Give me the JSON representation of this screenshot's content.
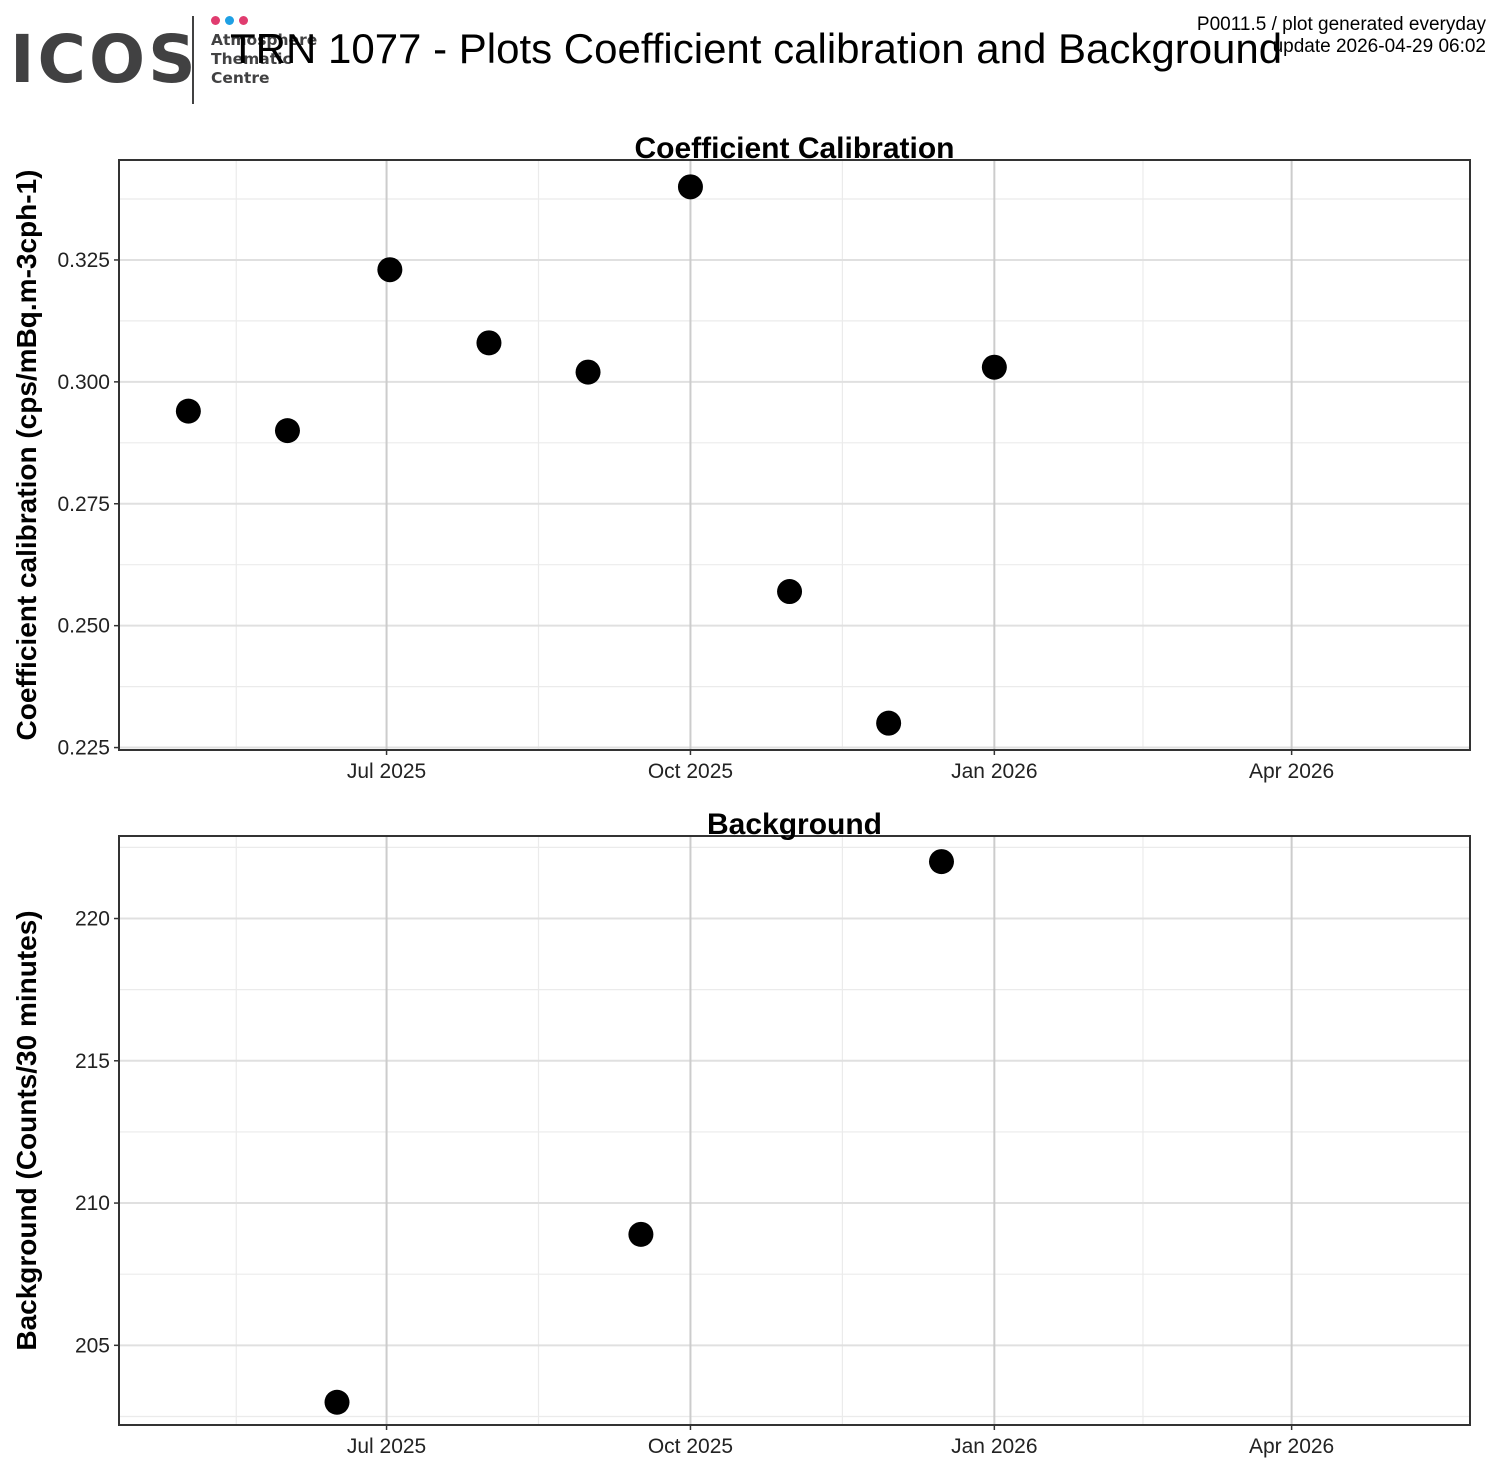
{
  "header": {
    "title": "TRN 1077 - Plots Coefficient calibration and Background",
    "meta_line1": "P0011.5 / plot generated everyday",
    "meta_line2": "update  2026-04-29 06:02"
  },
  "logo": {
    "wordmark": "ICOS",
    "line1": "Atmosphere",
    "line2": "Thematic",
    "line3": "Centre",
    "dot_colors": [
      "#e03c6f",
      "#1fa0e4",
      "#e03c6f"
    ],
    "text_color": "#414142"
  },
  "chart_data": [
    {
      "type": "scatter",
      "title": "Coefficient Calibration",
      "xlabel": "",
      "ylabel": "Coefficient calibration (cps/mBq.m-3cph-1)",
      "x_ticks": [
        "2025-07-01",
        "2025-10-01",
        "2026-01-01",
        "2026-04-01"
      ],
      "x_tick_labels": [
        "Jul 2025",
        "Oct 2025",
        "Jan 2026",
        "Apr 2026"
      ],
      "xlim": [
        "2025-04-11",
        "2026-05-25"
      ],
      "y_ticks": [
        0.225,
        0.25,
        0.275,
        0.3,
        0.325
      ],
      "y_tick_labels": [
        "0.225",
        "0.250",
        "0.275",
        "0.300",
        "0.325"
      ],
      "ylim": [
        0.2245,
        0.3455
      ],
      "grid": true,
      "x": [
        "2025-05-02",
        "2025-06-01",
        "2025-07-02",
        "2025-08-01",
        "2025-08-31",
        "2025-10-01",
        "2025-10-31",
        "2025-11-30",
        "2026-01-01"
      ],
      "y": [
        0.294,
        0.29,
        0.323,
        0.308,
        0.302,
        0.34,
        0.257,
        0.23,
        0.303
      ],
      "point_color": "#000000"
    },
    {
      "type": "scatter",
      "title": "Background",
      "xlabel": "",
      "ylabel": "Background (Counts/30 minutes)",
      "x_ticks": [
        "2025-07-01",
        "2025-10-01",
        "2026-01-01",
        "2026-04-01"
      ],
      "x_tick_labels": [
        "Jul 2025",
        "Oct 2025",
        "Jan 2026",
        "Apr 2026"
      ],
      "xlim": [
        "2025-04-11",
        "2026-05-25"
      ],
      "y_ticks": [
        205,
        210,
        215,
        220
      ],
      "y_tick_labels": [
        "205",
        "210",
        "215",
        "220"
      ],
      "ylim": [
        202.2,
        222.9
      ],
      "grid": true,
      "x": [
        "2025-06-16",
        "2025-09-16",
        "2025-12-16"
      ],
      "y": [
        203.0,
        208.9,
        222.0
      ],
      "point_color": "#000000"
    }
  ]
}
